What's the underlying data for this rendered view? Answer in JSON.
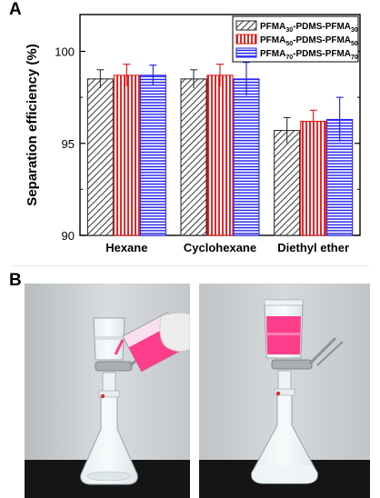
{
  "panels": {
    "a": "A",
    "b": "B"
  },
  "chart_data": {
    "type": "bar",
    "title": "",
    "xlabel": "",
    "ylabel": "Separation efficiency (%)",
    "ylim": [
      90,
      102
    ],
    "yticks": [
      90,
      95,
      100
    ],
    "grid": false,
    "legend_position": "top-right",
    "categories": [
      "Hexane",
      "Cyclohexane",
      "Diethyl ether"
    ],
    "series": [
      {
        "name": "PFMA30-PDMS-PFMA30",
        "name_parts": {
          "pre": "PFMA",
          "sub1": "30",
          "mid": "-PDMS-PFMA",
          "sub2": "30"
        },
        "values": [
          98.5,
          98.5,
          95.7
        ],
        "errors": [
          0.5,
          0.5,
          0.7
        ],
        "pattern": "diagonal-hatch",
        "color": "#555555"
      },
      {
        "name": "PFMA50-PDMS-PFMA50",
        "name_parts": {
          "pre": "PFMA",
          "sub1": "50",
          "mid": "-PDMS-PFMA",
          "sub2": "50"
        },
        "values": [
          98.7,
          98.7,
          96.2
        ],
        "errors": [
          0.6,
          0.6,
          0.6
        ],
        "pattern": "vertical-stripes",
        "color": "#e01010"
      },
      {
        "name": "PFMA70-PDMS-PFMA70",
        "name_parts": {
          "pre": "PFMA",
          "sub1": "70",
          "mid": "-PDMS-PFMA",
          "sub2": "70"
        },
        "values": [
          98.7,
          98.5,
          96.3
        ],
        "errors": [
          0.55,
          0.9,
          1.2
        ],
        "pattern": "horizontal-stripes",
        "color": "#1a1aee"
      }
    ]
  },
  "photos": [
    {
      "name": "pouring",
      "description_icon": "filtration-pouring-photo",
      "liquid_color": "#ff3d8d",
      "bench_color": "#151515",
      "wall_color": "#c9cdd0"
    },
    {
      "name": "filtered",
      "description_icon": "filtration-result-photo",
      "liquid_color": "#ff3d8d",
      "bench_color": "#151515",
      "wall_color": "#c9cdd0"
    }
  ]
}
